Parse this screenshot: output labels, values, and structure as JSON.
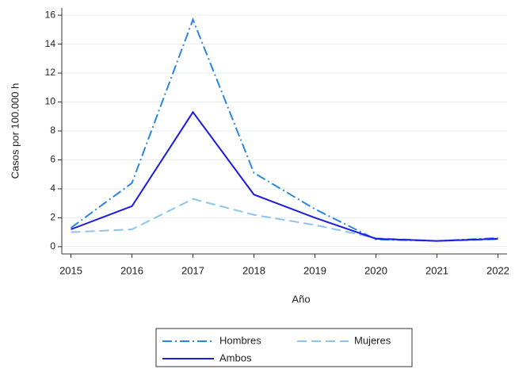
{
  "chart_data": {
    "type": "line",
    "xlabel": "Año",
    "ylabel": "Casos por 100.000 h",
    "x": [
      2015,
      2016,
      2017,
      2018,
      2019,
      2020,
      2021,
      2022
    ],
    "series": [
      {
        "name": "Hombres",
        "color": "#2b86e0",
        "linestyle": "dashdot",
        "values": [
          1.3,
          4.4,
          15.7,
          5.1,
          2.6,
          0.5,
          0.4,
          0.6
        ]
      },
      {
        "name": "Mujeres",
        "color": "#8ec3ee",
        "linestyle": "dashed",
        "values": [
          1.0,
          1.2,
          3.3,
          2.2,
          1.5,
          0.6,
          0.4,
          0.5
        ]
      },
      {
        "name": "Ambos",
        "color": "#1c1ce0",
        "linestyle": "solid",
        "values": [
          1.2,
          2.8,
          9.3,
          3.6,
          2.0,
          0.55,
          0.4,
          0.55
        ]
      }
    ],
    "xlim": [
      2014.85,
      2022.15
    ],
    "xticks": [
      2015,
      2016,
      2017,
      2018,
      2019,
      2020,
      2021,
      2022
    ],
    "ylim": [
      -0.5,
      16.5
    ],
    "yticks": [
      0,
      2,
      4,
      6,
      8,
      10,
      12,
      14,
      16
    ],
    "grid": true,
    "legend": "bottom"
  }
}
